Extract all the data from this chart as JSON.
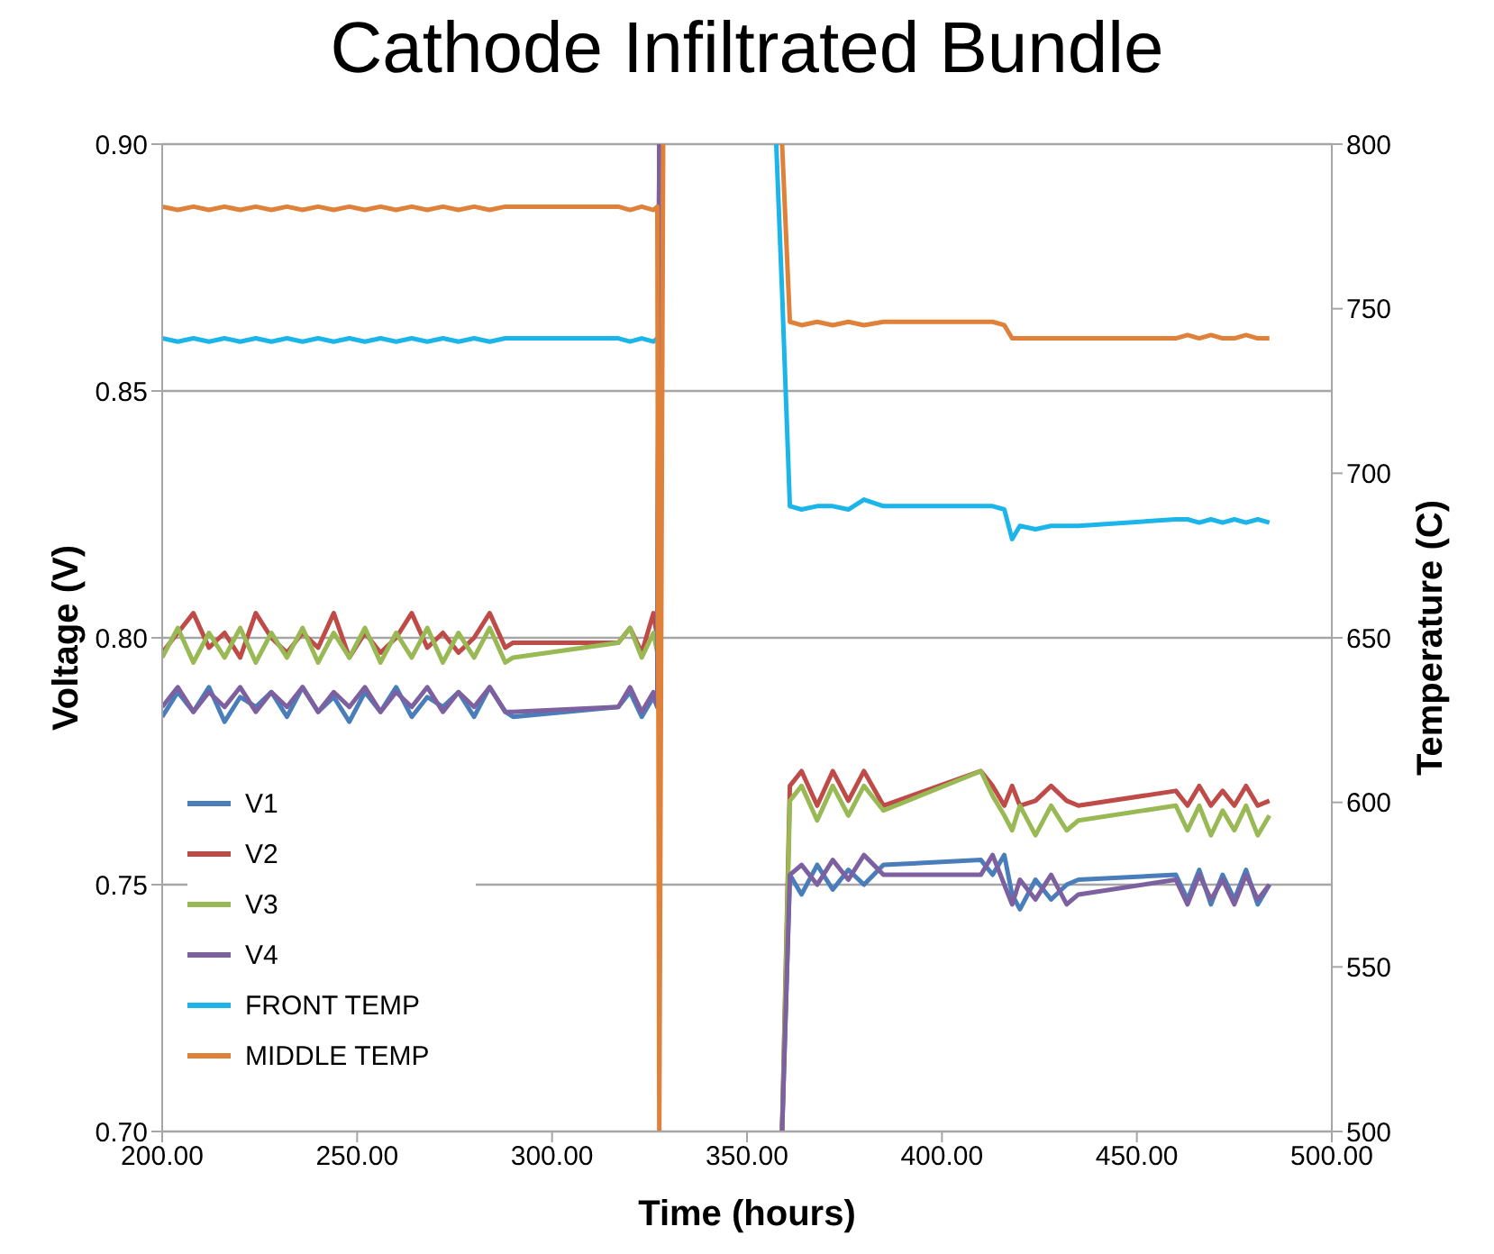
{
  "chart_data": {
    "type": "line",
    "title": "Cathode Infiltrated Bundle",
    "xlabel": "Time (hours)",
    "ylabel": "Voltage (V)",
    "y2label": "Temperature (C)",
    "x": [
      200,
      204,
      208,
      212,
      216,
      220,
      224,
      228,
      232,
      236,
      240,
      244,
      248,
      252,
      256,
      260,
      264,
      268,
      272,
      276,
      280,
      284,
      288,
      290,
      317,
      320,
      323,
      326,
      327,
      327.5,
      328.5,
      340,
      357.5,
      359,
      361,
      364,
      368,
      372,
      376,
      380,
      385,
      410,
      413,
      416,
      418,
      420,
      424,
      428,
      432,
      435,
      460,
      463,
      466,
      469,
      472,
      475,
      478,
      481,
      484
    ],
    "series": [
      {
        "name": "V1",
        "color": "#4a7ebb",
        "values": [
          0.784,
          0.789,
          0.785,
          0.79,
          0.783,
          0.788,
          0.786,
          0.789,
          0.784,
          0.79,
          0.785,
          0.788,
          0.783,
          0.789,
          0.785,
          0.79,
          0.784,
          0.788,
          0.786,
          0.789,
          0.784,
          0.79,
          0.785,
          0.784,
          0.786,
          0.789,
          0.784,
          0.788,
          0.786,
          0.9,
          null,
          null,
          null,
          0.7,
          0.752,
          0.748,
          0.754,
          0.749,
          0.753,
          0.75,
          0.754,
          0.755,
          0.752,
          0.756,
          0.748,
          0.745,
          0.751,
          0.747,
          0.75,
          0.751,
          0.752,
          0.747,
          0.753,
          0.746,
          0.752,
          0.747,
          0.753,
          0.746,
          0.75
        ]
      },
      {
        "name": "V2",
        "color": "#be4b48",
        "values": [
          0.797,
          0.801,
          0.805,
          0.798,
          0.801,
          0.796,
          0.805,
          0.8,
          0.797,
          0.801,
          0.798,
          0.805,
          0.796,
          0.801,
          0.797,
          0.8,
          0.805,
          0.798,
          0.801,
          0.797,
          0.8,
          0.805,
          0.798,
          0.799,
          0.799,
          0.802,
          0.797,
          0.805,
          0.8,
          0.9,
          null,
          null,
          null,
          0.7,
          0.77,
          0.773,
          0.766,
          0.773,
          0.767,
          0.773,
          0.766,
          0.773,
          0.77,
          0.766,
          0.77,
          0.766,
          0.767,
          0.77,
          0.767,
          0.766,
          0.769,
          0.766,
          0.77,
          0.766,
          0.769,
          0.766,
          0.77,
          0.766,
          0.767
        ]
      },
      {
        "name": "V3",
        "color": "#98b954",
        "values": [
          0.796,
          0.802,
          0.795,
          0.801,
          0.796,
          0.802,
          0.795,
          0.801,
          0.796,
          0.802,
          0.795,
          0.801,
          0.796,
          0.802,
          0.795,
          0.801,
          0.796,
          0.802,
          0.795,
          0.801,
          0.796,
          0.802,
          0.795,
          0.796,
          0.799,
          0.802,
          0.796,
          0.801,
          0.797,
          0.9,
          null,
          null,
          null,
          0.7,
          0.767,
          0.77,
          0.763,
          0.77,
          0.764,
          0.77,
          0.765,
          0.773,
          0.768,
          0.764,
          0.761,
          0.766,
          0.76,
          0.766,
          0.761,
          0.763,
          0.766,
          0.761,
          0.766,
          0.76,
          0.765,
          0.761,
          0.766,
          0.76,
          0.764
        ]
      },
      {
        "name": "V4",
        "color": "#7d60a0",
        "values": [
          0.786,
          0.79,
          0.785,
          0.789,
          0.786,
          0.79,
          0.785,
          0.789,
          0.786,
          0.79,
          0.785,
          0.789,
          0.786,
          0.79,
          0.785,
          0.789,
          0.786,
          0.79,
          0.785,
          0.789,
          0.786,
          0.79,
          0.785,
          0.785,
          0.786,
          0.79,
          0.785,
          0.789,
          0.786,
          0.9,
          null,
          null,
          null,
          0.7,
          0.752,
          0.754,
          0.75,
          0.755,
          0.751,
          0.756,
          0.752,
          0.752,
          0.756,
          0.75,
          0.746,
          0.751,
          0.747,
          0.752,
          0.746,
          0.748,
          0.751,
          0.746,
          0.752,
          0.747,
          0.751,
          0.746,
          0.752,
          0.747,
          0.75
        ]
      },
      {
        "name": "FRONT TEMP",
        "color": "#1cb5ea",
        "axis": "y2",
        "values": [
          741,
          740,
          741,
          740,
          741,
          740,
          741,
          740,
          741,
          740,
          741,
          740,
          741,
          740,
          741,
          740,
          741,
          740,
          741,
          740,
          741,
          740,
          741,
          741,
          741,
          740,
          741,
          740,
          741,
          null,
          null,
          null,
          800,
          755,
          690,
          689,
          690,
          690,
          689,
          692,
          690,
          690,
          690,
          689,
          680,
          684,
          683,
          684,
          684,
          684,
          686,
          686,
          685,
          686,
          685,
          686,
          685,
          686,
          685
        ]
      },
      {
        "name": "MIDDLE TEMP",
        "color": "#e0813a",
        "axis": "y2",
        "values": [
          781,
          780,
          781,
          780,
          781,
          780,
          781,
          780,
          781,
          780,
          781,
          780,
          781,
          780,
          781,
          780,
          781,
          780,
          781,
          780,
          781,
          780,
          781,
          781,
          781,
          780,
          781,
          780,
          781,
          500,
          800,
          null,
          null,
          800,
          746,
          745,
          746,
          745,
          746,
          745,
          746,
          746,
          746,
          745,
          741,
          741,
          741,
          741,
          741,
          741,
          741,
          742,
          741,
          742,
          741,
          741,
          742,
          741,
          741
        ]
      }
    ],
    "xlim": [
      200,
      500
    ],
    "xticks": [
      {
        "value": 200,
        "label": "200.00"
      },
      {
        "value": 250,
        "label": "250.00"
      },
      {
        "value": 300,
        "label": "300.00"
      },
      {
        "value": 350,
        "label": "350.00"
      },
      {
        "value": 400,
        "label": "400.00"
      },
      {
        "value": 450,
        "label": "450.00"
      },
      {
        "value": 500,
        "label": "500.00"
      }
    ],
    "ylim": [
      0.7,
      0.9
    ],
    "yticks": [
      {
        "value": 0.7,
        "label": "0.70"
      },
      {
        "value": 0.75,
        "label": "0.75"
      },
      {
        "value": 0.8,
        "label": "0.80"
      },
      {
        "value": 0.85,
        "label": "0.85"
      },
      {
        "value": 0.9,
        "label": "0.90"
      }
    ],
    "y2lim": [
      500,
      800
    ],
    "y2ticks": [
      500,
      550,
      600,
      650,
      700,
      750,
      800
    ],
    "grid": "y",
    "legend": "bottom left",
    "marker": "none",
    "line_style": "solid"
  }
}
